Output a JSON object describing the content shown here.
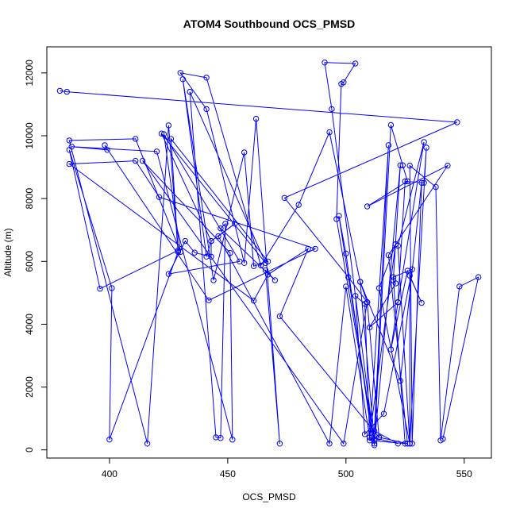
{
  "chart_data": {
    "type": "line",
    "title": "ATOM4 Southbound OCS_PMSD",
    "xlabel": "OCS_PMSD",
    "ylabel": "Altitude (m)",
    "xlim": [
      373.5,
      561.5
    ],
    "ylim": [
      -260,
      12830
    ],
    "xticks": [
      400,
      450,
      500,
      550
    ],
    "yticks": [
      0,
      2000,
      4000,
      6000,
      8000,
      10000,
      12000
    ],
    "color": "#0000ff",
    "marker": "open-circle",
    "grid": false,
    "legend": "none",
    "series": [
      {
        "points": [
          [
            379,
            11430
          ],
          [
            382,
            11400
          ],
          [
            547,
            10430
          ],
          [
            474,
            8020
          ],
          [
            501,
            5500
          ],
          [
            509,
            4700
          ],
          [
            514,
            400
          ],
          [
            526,
            200
          ],
          [
            518,
            6200
          ],
          [
            543,
            9050
          ],
          [
            509,
            7750
          ],
          [
            526,
            8550
          ],
          [
            524,
            9060
          ],
          [
            519,
            10340
          ],
          [
            512,
            200
          ],
          [
            523,
            9060
          ],
          [
            520,
            5400
          ],
          [
            521,
            5300
          ],
          [
            510,
            3900
          ],
          [
            522,
            4700
          ],
          [
            525,
            8550
          ],
          [
            533,
            8500
          ],
          [
            534,
            9620
          ],
          [
            527,
            200
          ],
          [
            522,
            6500
          ],
          [
            533,
            9800
          ],
          [
            522,
            4700
          ],
          [
            519,
            3200
          ],
          [
            526,
            5700
          ],
          [
            532,
            4680
          ],
          [
            527,
            5550
          ],
          [
            527,
            200
          ],
          [
            514,
            5150
          ],
          [
            521,
            6550
          ],
          [
            510,
            400
          ],
          [
            508,
            4650
          ],
          [
            504,
            4900
          ],
          [
            508,
            500
          ],
          [
            516,
            1150
          ],
          [
            528,
            5750
          ],
          [
            520,
            5500
          ],
          [
            525,
            200
          ],
          [
            510,
            300
          ],
          [
            518,
            9700
          ],
          [
            512,
            600
          ],
          [
            522,
            200
          ],
          [
            511,
            400
          ],
          [
            500,
            6250
          ],
          [
            497,
            7450
          ],
          [
            512,
            150
          ],
          [
            494,
            10850
          ],
          [
            491,
            12330
          ],
          [
            504,
            12300
          ],
          [
            499,
            11700
          ],
          [
            498,
            11650
          ],
          [
            496,
            7350
          ],
          [
            512,
            300
          ],
          [
            506,
            5350
          ],
          [
            493,
            10110
          ],
          [
            480,
            7800
          ],
          [
            464,
            5870
          ],
          [
            441,
            11850
          ],
          [
            430,
            12000
          ],
          [
            441,
            10850
          ],
          [
            457,
            5950
          ],
          [
            462,
            10540
          ],
          [
            472,
            200
          ],
          [
            466,
            5720
          ],
          [
            470,
            5400
          ],
          [
            447,
            7050
          ],
          [
            449,
            7200
          ],
          [
            447,
            380
          ],
          [
            445,
            400
          ],
          [
            434,
            11400
          ],
          [
            466,
            5950
          ],
          [
            422,
            10070
          ],
          [
            443,
            6650
          ],
          [
            441,
            6150
          ],
          [
            431,
            11800
          ],
          [
            444,
            5400
          ],
          [
            457,
            9470
          ],
          [
            461,
            5850
          ],
          [
            467,
            6000
          ],
          [
            426,
            9900
          ],
          [
            429,
            6350
          ],
          [
            396,
            5130
          ],
          [
            383,
            9550
          ],
          [
            401,
            5150
          ],
          [
            400,
            330
          ],
          [
            429,
            6300
          ],
          [
            425,
            10330
          ],
          [
            416,
            200
          ],
          [
            383,
            9850
          ],
          [
            411,
            9900
          ],
          [
            430,
            6300
          ],
          [
            423,
            10050
          ],
          [
            455,
            6000
          ],
          [
            425,
            5600
          ],
          [
            432,
            6650
          ],
          [
            436,
            6280
          ],
          [
            443,
            6150
          ],
          [
            443,
            6650
          ],
          [
            453,
            7200
          ],
          [
            446,
            6800
          ],
          [
            493,
            200
          ],
          [
            500,
            5200
          ],
          [
            510,
            400
          ],
          [
            514,
            400
          ],
          [
            472,
            4250
          ],
          [
            484,
            6400
          ],
          [
            467,
            5580
          ],
          [
            461,
            4750
          ],
          [
            383,
            9100
          ],
          [
            411,
            9200
          ],
          [
            421,
            8050
          ],
          [
            487,
            6400
          ],
          [
            442,
            4760
          ],
          [
            398,
            9700
          ],
          [
            399,
            9550
          ],
          [
            384,
            9650
          ],
          [
            420,
            9500
          ],
          [
            452,
            330
          ],
          [
            451,
            6270
          ],
          [
            414,
            9200
          ],
          [
            499,
            200
          ],
          [
            509,
            4700
          ],
          [
            506,
            5350
          ],
          [
            523,
            2200
          ],
          [
            532,
            8500
          ],
          [
            528,
            200
          ],
          [
            527,
            9050
          ],
          [
            538,
            8370
          ],
          [
            540,
            300
          ],
          [
            548,
            5200
          ],
          [
            556,
            5500
          ],
          [
            541,
            350
          ]
        ]
      }
    ]
  }
}
